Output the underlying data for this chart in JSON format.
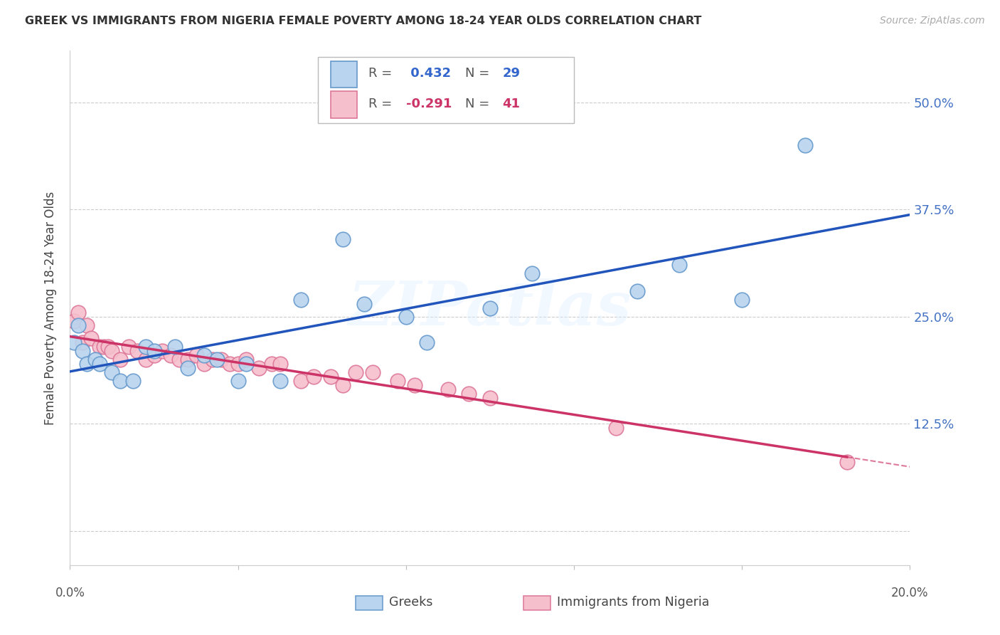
{
  "title": "GREEK VS IMMIGRANTS FROM NIGERIA FEMALE POVERTY AMONG 18-24 YEAR OLDS CORRELATION CHART",
  "source": "Source: ZipAtlas.com",
  "ylabel": "Female Poverty Among 18-24 Year Olds",
  "y_ticks": [
    0.0,
    0.125,
    0.25,
    0.375,
    0.5
  ],
  "y_tick_labels": [
    "",
    "12.5%",
    "25.0%",
    "37.5%",
    "50.0%"
  ],
  "x_range": [
    0.0,
    0.2
  ],
  "y_range": [
    -0.04,
    0.56
  ],
  "greek_R": 0.432,
  "greek_N": 29,
  "nigeria_R": -0.291,
  "nigeria_N": 41,
  "greek_color": "#b8d4ee",
  "greek_edge_color": "#6699cc",
  "nigeria_color": "#f5bfcc",
  "nigeria_edge_color": "#dd7799",
  "greek_line_color": "#2255bb",
  "nigeria_line_color": "#cc3366",
  "background_color": "#ffffff",
  "watermark": "ZIPatlas",
  "greek_x": [
    0.001,
    0.002,
    0.003,
    0.004,
    0.006,
    0.007,
    0.01,
    0.012,
    0.015,
    0.018,
    0.02,
    0.025,
    0.028,
    0.032,
    0.035,
    0.04,
    0.042,
    0.05,
    0.055,
    0.065,
    0.07,
    0.08,
    0.085,
    0.1,
    0.11,
    0.135,
    0.145,
    0.16,
    0.175
  ],
  "greek_y": [
    0.22,
    0.24,
    0.21,
    0.195,
    0.2,
    0.195,
    0.185,
    0.175,
    0.175,
    0.215,
    0.21,
    0.215,
    0.19,
    0.205,
    0.2,
    0.175,
    0.195,
    0.175,
    0.27,
    0.34,
    0.265,
    0.25,
    0.22,
    0.26,
    0.3,
    0.28,
    0.31,
    0.27,
    0.45
  ],
  "nigeria_x": [
    0.001,
    0.002,
    0.003,
    0.004,
    0.005,
    0.007,
    0.008,
    0.009,
    0.01,
    0.012,
    0.014,
    0.016,
    0.018,
    0.02,
    0.022,
    0.024,
    0.026,
    0.028,
    0.03,
    0.032,
    0.034,
    0.036,
    0.038,
    0.04,
    0.042,
    0.045,
    0.048,
    0.05,
    0.055,
    0.058,
    0.062,
    0.065,
    0.068,
    0.072,
    0.078,
    0.082,
    0.09,
    0.095,
    0.1,
    0.13,
    0.185
  ],
  "nigeria_y": [
    0.245,
    0.255,
    0.22,
    0.24,
    0.225,
    0.215,
    0.215,
    0.215,
    0.21,
    0.2,
    0.215,
    0.21,
    0.2,
    0.205,
    0.21,
    0.205,
    0.2,
    0.2,
    0.205,
    0.195,
    0.2,
    0.2,
    0.195,
    0.195,
    0.2,
    0.19,
    0.195,
    0.195,
    0.175,
    0.18,
    0.18,
    0.17,
    0.185,
    0.185,
    0.175,
    0.17,
    0.165,
    0.16,
    0.155,
    0.12,
    0.08
  ]
}
